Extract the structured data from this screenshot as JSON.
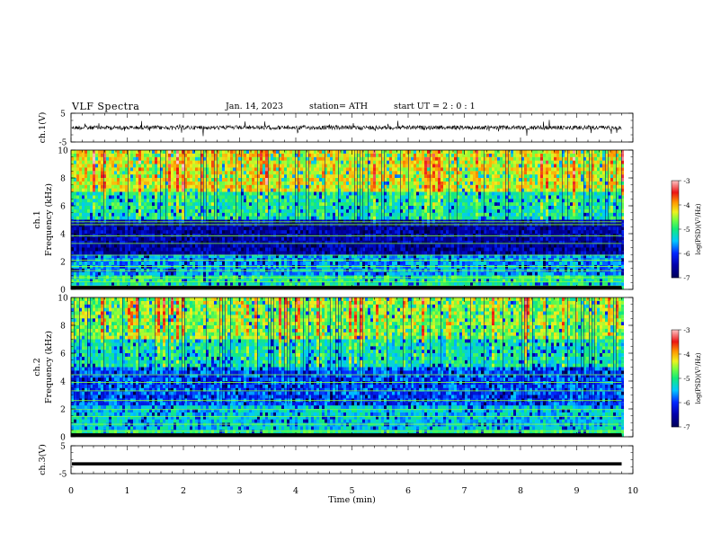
{
  "header": {
    "title": "VLF  Spectra",
    "date": "Jan. 14, 2023",
    "station": "station= ATH",
    "start": "start  UT  =   2  : 0  : 1"
  },
  "chart_data": [
    {
      "type": "line",
      "title": "",
      "ylabel": "ch.1(V)",
      "ylim": [
        -5,
        5
      ],
      "ytick_labels": [
        "5",
        "-5"
      ],
      "yticks": [
        5,
        -5
      ],
      "xlim": [
        0,
        10
      ],
      "series": [
        {
          "x_range": [
            0,
            9.8
          ],
          "mean_value": 0.0,
          "noise_amplitude": 1.6
        }
      ]
    },
    {
      "type": "heatmap",
      "ylabel": "ch.1\nFrequency  (kHz)",
      "ylabel_lines": [
        "ch.1",
        "Frequency  (kHz)"
      ],
      "ylim": [
        0,
        10
      ],
      "yticks": [
        0,
        2,
        4,
        6,
        8,
        10
      ],
      "ytick_labels": [
        "0",
        "2",
        "4",
        "6",
        "8",
        "10"
      ],
      "xlim": [
        0,
        10
      ],
      "data_x_range": [
        0,
        9.8
      ],
      "colorbar": {
        "label": "log(PSD)(V²/Hz)",
        "range": [
          -7,
          -3
        ],
        "ticks": [
          -3,
          -4,
          -5,
          -6,
          -7
        ],
        "tick_labels": [
          "-3",
          "-4",
          "-5",
          "-6",
          "-7"
        ]
      },
      "band_profile": [
        {
          "freq": [
            0.0,
            0.3
          ],
          "level": -5.2
        },
        {
          "freq": [
            0.3,
            1.0
          ],
          "level": -5.0
        },
        {
          "freq": [
            1.0,
            2.4
          ],
          "level": -5.6
        },
        {
          "freq": [
            2.4,
            4.9
          ],
          "level": -6.5
        },
        {
          "freq": [
            4.9,
            7.0
          ],
          "level": -5.2
        },
        {
          "freq": [
            7.0,
            10.0
          ],
          "level": -4.5
        }
      ],
      "tonal_lines_khz": [
        0.25,
        0.55,
        0.85,
        1.35,
        1.65,
        2.1,
        2.45,
        3.3,
        3.85,
        4.65,
        4.85
      ]
    },
    {
      "type": "heatmap",
      "ylabel": "ch.2\nFrequency  (kHz)",
      "ylabel_lines": [
        "ch.2",
        "Frequency  (kHz)"
      ],
      "ylim": [
        0,
        10
      ],
      "yticks": [
        0,
        2,
        4,
        6,
        8,
        10
      ],
      "ytick_labels": [
        "0",
        "2",
        "4",
        "6",
        "8",
        "10"
      ],
      "xlim": [
        0,
        10
      ],
      "data_x_range": [
        0,
        9.8
      ],
      "colorbar": {
        "label": "log(PSD)(V²/Hz)",
        "range": [
          -7,
          -3
        ],
        "ticks": [
          -3,
          -4,
          -5,
          -6,
          -7
        ],
        "tick_labels": [
          "-3",
          "-4",
          "-5",
          "-6",
          "-7"
        ]
      },
      "band_profile": [
        {
          "freq": [
            0.0,
            0.3
          ],
          "level": -5.0
        },
        {
          "freq": [
            0.3,
            2.2
          ],
          "level": -5.4
        },
        {
          "freq": [
            2.2,
            4.8
          ],
          "level": -5.9
        },
        {
          "freq": [
            4.8,
            7.0
          ],
          "level": -5.3
        },
        {
          "freq": [
            7.0,
            10.0
          ],
          "level": -4.8
        }
      ],
      "tonal_lines_khz": [
        0.4,
        0.9,
        1.45,
        1.95,
        2.6,
        3.3,
        3.9,
        4.45
      ]
    },
    {
      "type": "line",
      "ylabel": "ch.3(V)",
      "ylim": [
        -5,
        5
      ],
      "yticks": [
        5,
        -5
      ],
      "ytick_labels": [
        "5",
        "-5"
      ],
      "xlim": [
        0,
        10
      ],
      "xticks": [
        0,
        1,
        2,
        3,
        4,
        5,
        6,
        7,
        8,
        9,
        10
      ],
      "xtick_labels": [
        "0",
        "1",
        "2",
        "3",
        "4",
        "5",
        "6",
        "7",
        "8",
        "9",
        "10"
      ],
      "xlabel": "Time  (min)",
      "series": [
        {
          "x_range": [
            0,
            9.8
          ],
          "constant_value": -1.5
        }
      ]
    }
  ],
  "colors": {
    "trace": "#000000",
    "colormap": [
      "#000000",
      "#0000ff",
      "#00ffff",
      "#00ff00",
      "#ffff00",
      "#ff0000",
      "#ffffff"
    ]
  }
}
